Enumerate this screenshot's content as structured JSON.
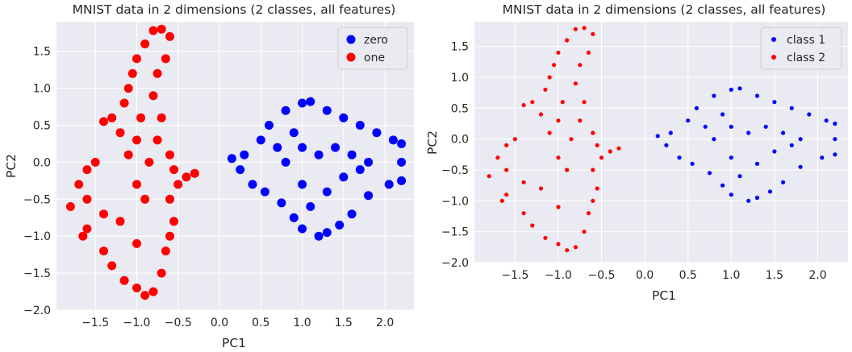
{
  "colors": {
    "panel_bg": "#eaeaf2",
    "grid": "#ffffff",
    "zero": "#0000ff",
    "one": "#ff0000"
  },
  "chart_data": [
    {
      "type": "scatter",
      "title": "MNIST data in 2 dimensions (2 classes, all features)",
      "xlabel": "PC1",
      "ylabel": "PC2",
      "xlim": [
        -1.97,
        2.35
      ],
      "ylim": [
        -2.0,
        1.9
      ],
      "xticks": [
        -1.5,
        -1.0,
        -0.5,
        0.0,
        0.5,
        1.0,
        1.5,
        2.0
      ],
      "yticks": [
        -2.0,
        -1.5,
        -1.0,
        -0.5,
        0.0,
        0.5,
        1.0,
        1.5
      ],
      "xtick_labels": [
        "−1.5",
        "−1.0",
        "−0.5",
        "0.0",
        "0.5",
        "1.0",
        "1.5",
        "2.0"
      ],
      "ytick_labels": [
        "−2.0",
        "−1.5",
        "−1.0",
        "−0.5",
        "0.0",
        "0.5",
        "1.0",
        "1.5"
      ],
      "legend_position": "top-right",
      "grid": true,
      "marker_size": "large",
      "series": [
        {
          "name": "zero",
          "color": "#0000ff",
          "points": [
            [
              0.15,
              0.05
            ],
            [
              0.3,
              0.1
            ],
            [
              0.25,
              -0.1
            ],
            [
              0.5,
              0.3
            ],
            [
              0.6,
              0.5
            ],
            [
              0.8,
              0.7
            ],
            [
              1.0,
              0.8
            ],
            [
              1.1,
              0.82
            ],
            [
              1.3,
              0.7
            ],
            [
              1.5,
              0.6
            ],
            [
              1.7,
              0.5
            ],
            [
              1.9,
              0.4
            ],
            [
              2.1,
              0.3
            ],
            [
              2.2,
              0.25
            ],
            [
              2.2,
              0.0
            ],
            [
              2.2,
              -0.25
            ],
            [
              2.05,
              -0.3
            ],
            [
              1.8,
              -0.45
            ],
            [
              1.6,
              -0.7
            ],
            [
              1.45,
              -0.85
            ],
            [
              1.3,
              -0.95
            ],
            [
              1.2,
              -1.0
            ],
            [
              1.0,
              -0.9
            ],
            [
              0.9,
              -0.75
            ],
            [
              0.75,
              -0.55
            ],
            [
              0.55,
              -0.4
            ],
            [
              0.4,
              -0.3
            ],
            [
              0.8,
              0.0
            ],
            [
              1.0,
              0.2
            ],
            [
              1.2,
              0.1
            ],
            [
              1.4,
              0.2
            ],
            [
              1.6,
              0.1
            ],
            [
              1.8,
              0.0
            ],
            [
              1.0,
              -0.3
            ],
            [
              1.3,
              -0.4
            ],
            [
              1.5,
              -0.2
            ],
            [
              0.7,
              0.2
            ],
            [
              0.9,
              0.4
            ],
            [
              1.7,
              -0.1
            ],
            [
              1.1,
              -0.6
            ]
          ]
        },
        {
          "name": "one",
          "color": "#ff0000",
          "points": [
            [
              -0.7,
              1.8
            ],
            [
              -0.8,
              1.78
            ],
            [
              -0.6,
              1.7
            ],
            [
              -0.9,
              1.6
            ],
            [
              -1.0,
              1.4
            ],
            [
              -1.05,
              1.2
            ],
            [
              -1.1,
              1.0
            ],
            [
              -1.15,
              0.8
            ],
            [
              -1.3,
              0.6
            ],
            [
              -1.4,
              0.55
            ],
            [
              -1.2,
              0.4
            ],
            [
              -1.0,
              0.3
            ],
            [
              -1.1,
              0.1
            ],
            [
              -1.5,
              0.0
            ],
            [
              -1.6,
              -0.1
            ],
            [
              -1.7,
              -0.3
            ],
            [
              -1.8,
              -0.6
            ],
            [
              -1.6,
              -0.5
            ],
            [
              -1.4,
              -0.7
            ],
            [
              -1.6,
              -0.9
            ],
            [
              -1.65,
              -1.0
            ],
            [
              -1.4,
              -1.2
            ],
            [
              -1.3,
              -1.4
            ],
            [
              -1.15,
              -1.6
            ],
            [
              -1.0,
              -1.7
            ],
            [
              -0.9,
              -1.8
            ],
            [
              -0.8,
              -1.75
            ],
            [
              -0.7,
              -1.5
            ],
            [
              -0.65,
              -1.2
            ],
            [
              -0.6,
              -1.0
            ],
            [
              -0.55,
              -0.8
            ],
            [
              -0.6,
              -0.5
            ],
            [
              -0.5,
              -0.3
            ],
            [
              -0.55,
              -0.1
            ],
            [
              -0.6,
              0.1
            ],
            [
              -0.75,
              0.3
            ],
            [
              -0.7,
              0.6
            ],
            [
              -0.8,
              0.9
            ],
            [
              -0.75,
              1.2
            ],
            [
              -0.65,
              1.4
            ],
            [
              -0.3,
              -0.15
            ],
            [
              -0.4,
              -0.2
            ],
            [
              -1.0,
              -0.3
            ],
            [
              -1.2,
              -0.8
            ],
            [
              -1.0,
              -1.1
            ],
            [
              -0.9,
              -0.5
            ],
            [
              -0.85,
              0.0
            ],
            [
              -0.95,
              0.6
            ]
          ]
        }
      ]
    },
    {
      "type": "scatter",
      "title": "MNIST data in 2 dimensions (2 classes, all features)",
      "xlabel": "PC1",
      "ylabel": "PC2",
      "xlim": [
        -1.97,
        2.35
      ],
      "ylim": [
        -2.0,
        1.9
      ],
      "xticks": [
        -1.5,
        -1.0,
        -0.5,
        0.0,
        0.5,
        1.0,
        1.5,
        2.0
      ],
      "yticks": [
        -2.0,
        -1.5,
        -1.0,
        -0.5,
        0.0,
        0.5,
        1.0,
        1.5
      ],
      "xtick_labels": [
        "−1.5",
        "−1.0",
        "−0.5",
        "0.0",
        "0.5",
        "1.0",
        "1.5",
        "2.0"
      ],
      "ytick_labels": [
        "−2.0",
        "−1.5",
        "−1.0",
        "−0.5",
        "0.0",
        "0.5",
        "1.0",
        "1.5"
      ],
      "legend_position": "top-right",
      "grid": true,
      "marker_size": "small",
      "series": [
        {
          "name": "class 1",
          "color": "#0000ff",
          "points": [
            [
              0.15,
              0.05
            ],
            [
              0.3,
              0.1
            ],
            [
              0.25,
              -0.1
            ],
            [
              0.5,
              0.3
            ],
            [
              0.6,
              0.5
            ],
            [
              0.8,
              0.7
            ],
            [
              1.0,
              0.8
            ],
            [
              1.1,
              0.82
            ],
            [
              1.3,
              0.7
            ],
            [
              1.5,
              0.6
            ],
            [
              1.7,
              0.5
            ],
            [
              1.9,
              0.4
            ],
            [
              2.1,
              0.3
            ],
            [
              2.2,
              0.25
            ],
            [
              2.2,
              0.0
            ],
            [
              2.2,
              -0.25
            ],
            [
              2.05,
              -0.3
            ],
            [
              1.8,
              -0.45
            ],
            [
              1.6,
              -0.7
            ],
            [
              1.45,
              -0.85
            ],
            [
              1.3,
              -0.95
            ],
            [
              1.2,
              -1.0
            ],
            [
              1.0,
              -0.9
            ],
            [
              0.9,
              -0.75
            ],
            [
              0.75,
              -0.55
            ],
            [
              0.55,
              -0.4
            ],
            [
              0.4,
              -0.3
            ],
            [
              0.8,
              0.0
            ],
            [
              1.0,
              0.2
            ],
            [
              1.2,
              0.1
            ],
            [
              1.4,
              0.2
            ],
            [
              1.6,
              0.1
            ],
            [
              1.8,
              0.0
            ],
            [
              1.0,
              -0.3
            ],
            [
              1.3,
              -0.4
            ],
            [
              1.5,
              -0.2
            ],
            [
              0.7,
              0.2
            ],
            [
              0.9,
              0.4
            ],
            [
              1.7,
              -0.1
            ],
            [
              1.1,
              -0.6
            ]
          ]
        },
        {
          "name": "class 2",
          "color": "#ff0000",
          "points": [
            [
              -0.7,
              1.8
            ],
            [
              -0.8,
              1.78
            ],
            [
              -0.6,
              1.7
            ],
            [
              -0.9,
              1.6
            ],
            [
              -1.0,
              1.4
            ],
            [
              -1.05,
              1.2
            ],
            [
              -1.1,
              1.0
            ],
            [
              -1.15,
              0.8
            ],
            [
              -1.3,
              0.6
            ],
            [
              -1.4,
              0.55
            ],
            [
              -1.2,
              0.4
            ],
            [
              -1.0,
              0.3
            ],
            [
              -1.1,
              0.1
            ],
            [
              -1.5,
              0.0
            ],
            [
              -1.6,
              -0.1
            ],
            [
              -1.7,
              -0.3
            ],
            [
              -1.8,
              -0.6
            ],
            [
              -1.6,
              -0.5
            ],
            [
              -1.4,
              -0.7
            ],
            [
              -1.6,
              -0.9
            ],
            [
              -1.65,
              -1.0
            ],
            [
              -1.4,
              -1.2
            ],
            [
              -1.3,
              -1.4
            ],
            [
              -1.15,
              -1.6
            ],
            [
              -1.0,
              -1.7
            ],
            [
              -0.9,
              -1.8
            ],
            [
              -0.8,
              -1.75
            ],
            [
              -0.7,
              -1.5
            ],
            [
              -0.65,
              -1.2
            ],
            [
              -0.6,
              -1.0
            ],
            [
              -0.55,
              -0.8
            ],
            [
              -0.6,
              -0.5
            ],
            [
              -0.5,
              -0.3
            ],
            [
              -0.55,
              -0.1
            ],
            [
              -0.6,
              0.1
            ],
            [
              -0.75,
              0.3
            ],
            [
              -0.7,
              0.6
            ],
            [
              -0.8,
              0.9
            ],
            [
              -0.75,
              1.2
            ],
            [
              -0.65,
              1.4
            ],
            [
              -0.3,
              -0.15
            ],
            [
              -0.4,
              -0.2
            ],
            [
              -1.0,
              -0.3
            ],
            [
              -1.2,
              -0.8
            ],
            [
              -1.0,
              -1.1
            ],
            [
              -0.9,
              -0.5
            ],
            [
              -0.85,
              0.0
            ],
            [
              -0.95,
              0.6
            ]
          ]
        }
      ]
    }
  ]
}
